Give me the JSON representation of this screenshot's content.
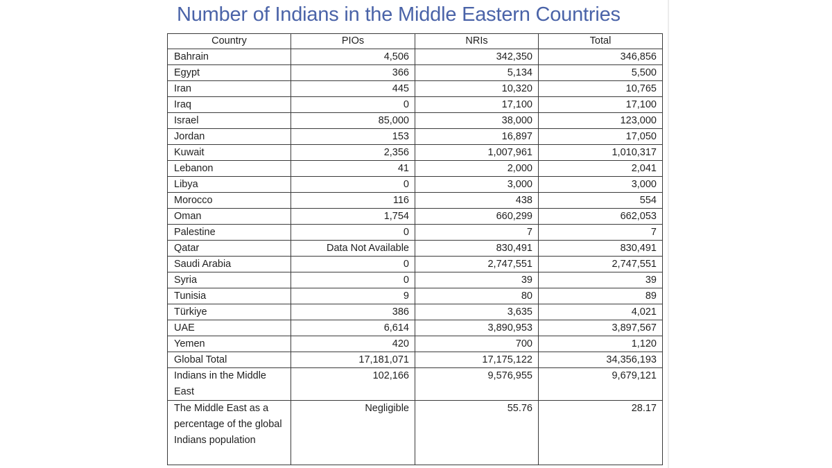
{
  "title": "Number of Indians in the Middle Eastern Countries",
  "colors": {
    "title": "#4a63a8",
    "border": "#3a3a3a",
    "text": "#1f1f1f",
    "background": "#ffffff"
  },
  "table": {
    "headers": [
      "Country",
      "PIOs",
      "NRIs",
      "Total"
    ],
    "rows": [
      {
        "country": "Bahrain",
        "pios": "4,506",
        "nris": "342,350",
        "total": "346,856"
      },
      {
        "country": "Egypt",
        "pios": "366",
        "nris": "5,134",
        "total": "5,500"
      },
      {
        "country": "Iran",
        "pios": "445",
        "nris": "10,320",
        "total": "10,765"
      },
      {
        "country": "Iraq",
        "pios": "0",
        "nris": "17,100",
        "total": "17,100"
      },
      {
        "country": "Israel",
        "pios": "85,000",
        "nris": "38,000",
        "total": "123,000"
      },
      {
        "country": "Jordan",
        "pios": "153",
        "nris": "16,897",
        "total": "17,050"
      },
      {
        "country": "Kuwait",
        "pios": "2,356",
        "nris": "1,007,961",
        "total": "1,010,317"
      },
      {
        "country": "Lebanon",
        "pios": "41",
        "nris": "2,000",
        "total": "2,041"
      },
      {
        "country": "Libya",
        "pios": "0",
        "nris": "3,000",
        "total": "3,000"
      },
      {
        "country": "Morocco",
        "pios": "116",
        "nris": "438",
        "total": "554"
      },
      {
        "country": "Oman",
        "pios": "1,754",
        "nris": "660,299",
        "total": "662,053"
      },
      {
        "country": "Palestine",
        "pios": "0",
        "nris": "7",
        "total": "7"
      },
      {
        "country": "Qatar",
        "pios": "Data Not Available",
        "nris": "830,491",
        "total": "830,491"
      },
      {
        "country": "Saudi Arabia",
        "pios": "0",
        "nris": "2,747,551",
        "total": "2,747,551"
      },
      {
        "country": "Syria",
        "pios": "0",
        "nris": "39",
        "total": "39"
      },
      {
        "country": "Tunisia",
        "pios": "9",
        "nris": "80",
        "total": "89"
      },
      {
        "country": "Türkiye",
        "pios": "386",
        "nris": "3,635",
        "total": "4,021"
      },
      {
        "country": "UAE",
        "pios": "6,614",
        "nris": "3,890,953",
        "total": "3,897,567"
      },
      {
        "country": "Yemen",
        "pios": "420",
        "nris": "700",
        "total": "1,120"
      },
      {
        "country": "Global Total",
        "pios": "17,181,071",
        "nris": "17,175,122",
        "total": "34,356,193"
      },
      {
        "country": "Indians in the Middle East",
        "pios": "102,166",
        "nris": "9,576,955",
        "total": "9,679,121"
      },
      {
        "country": "The Middle East as a percentage of the global Indians population",
        "pios": "Negligible",
        "nris": "55.76",
        "total": "28.17"
      }
    ]
  }
}
